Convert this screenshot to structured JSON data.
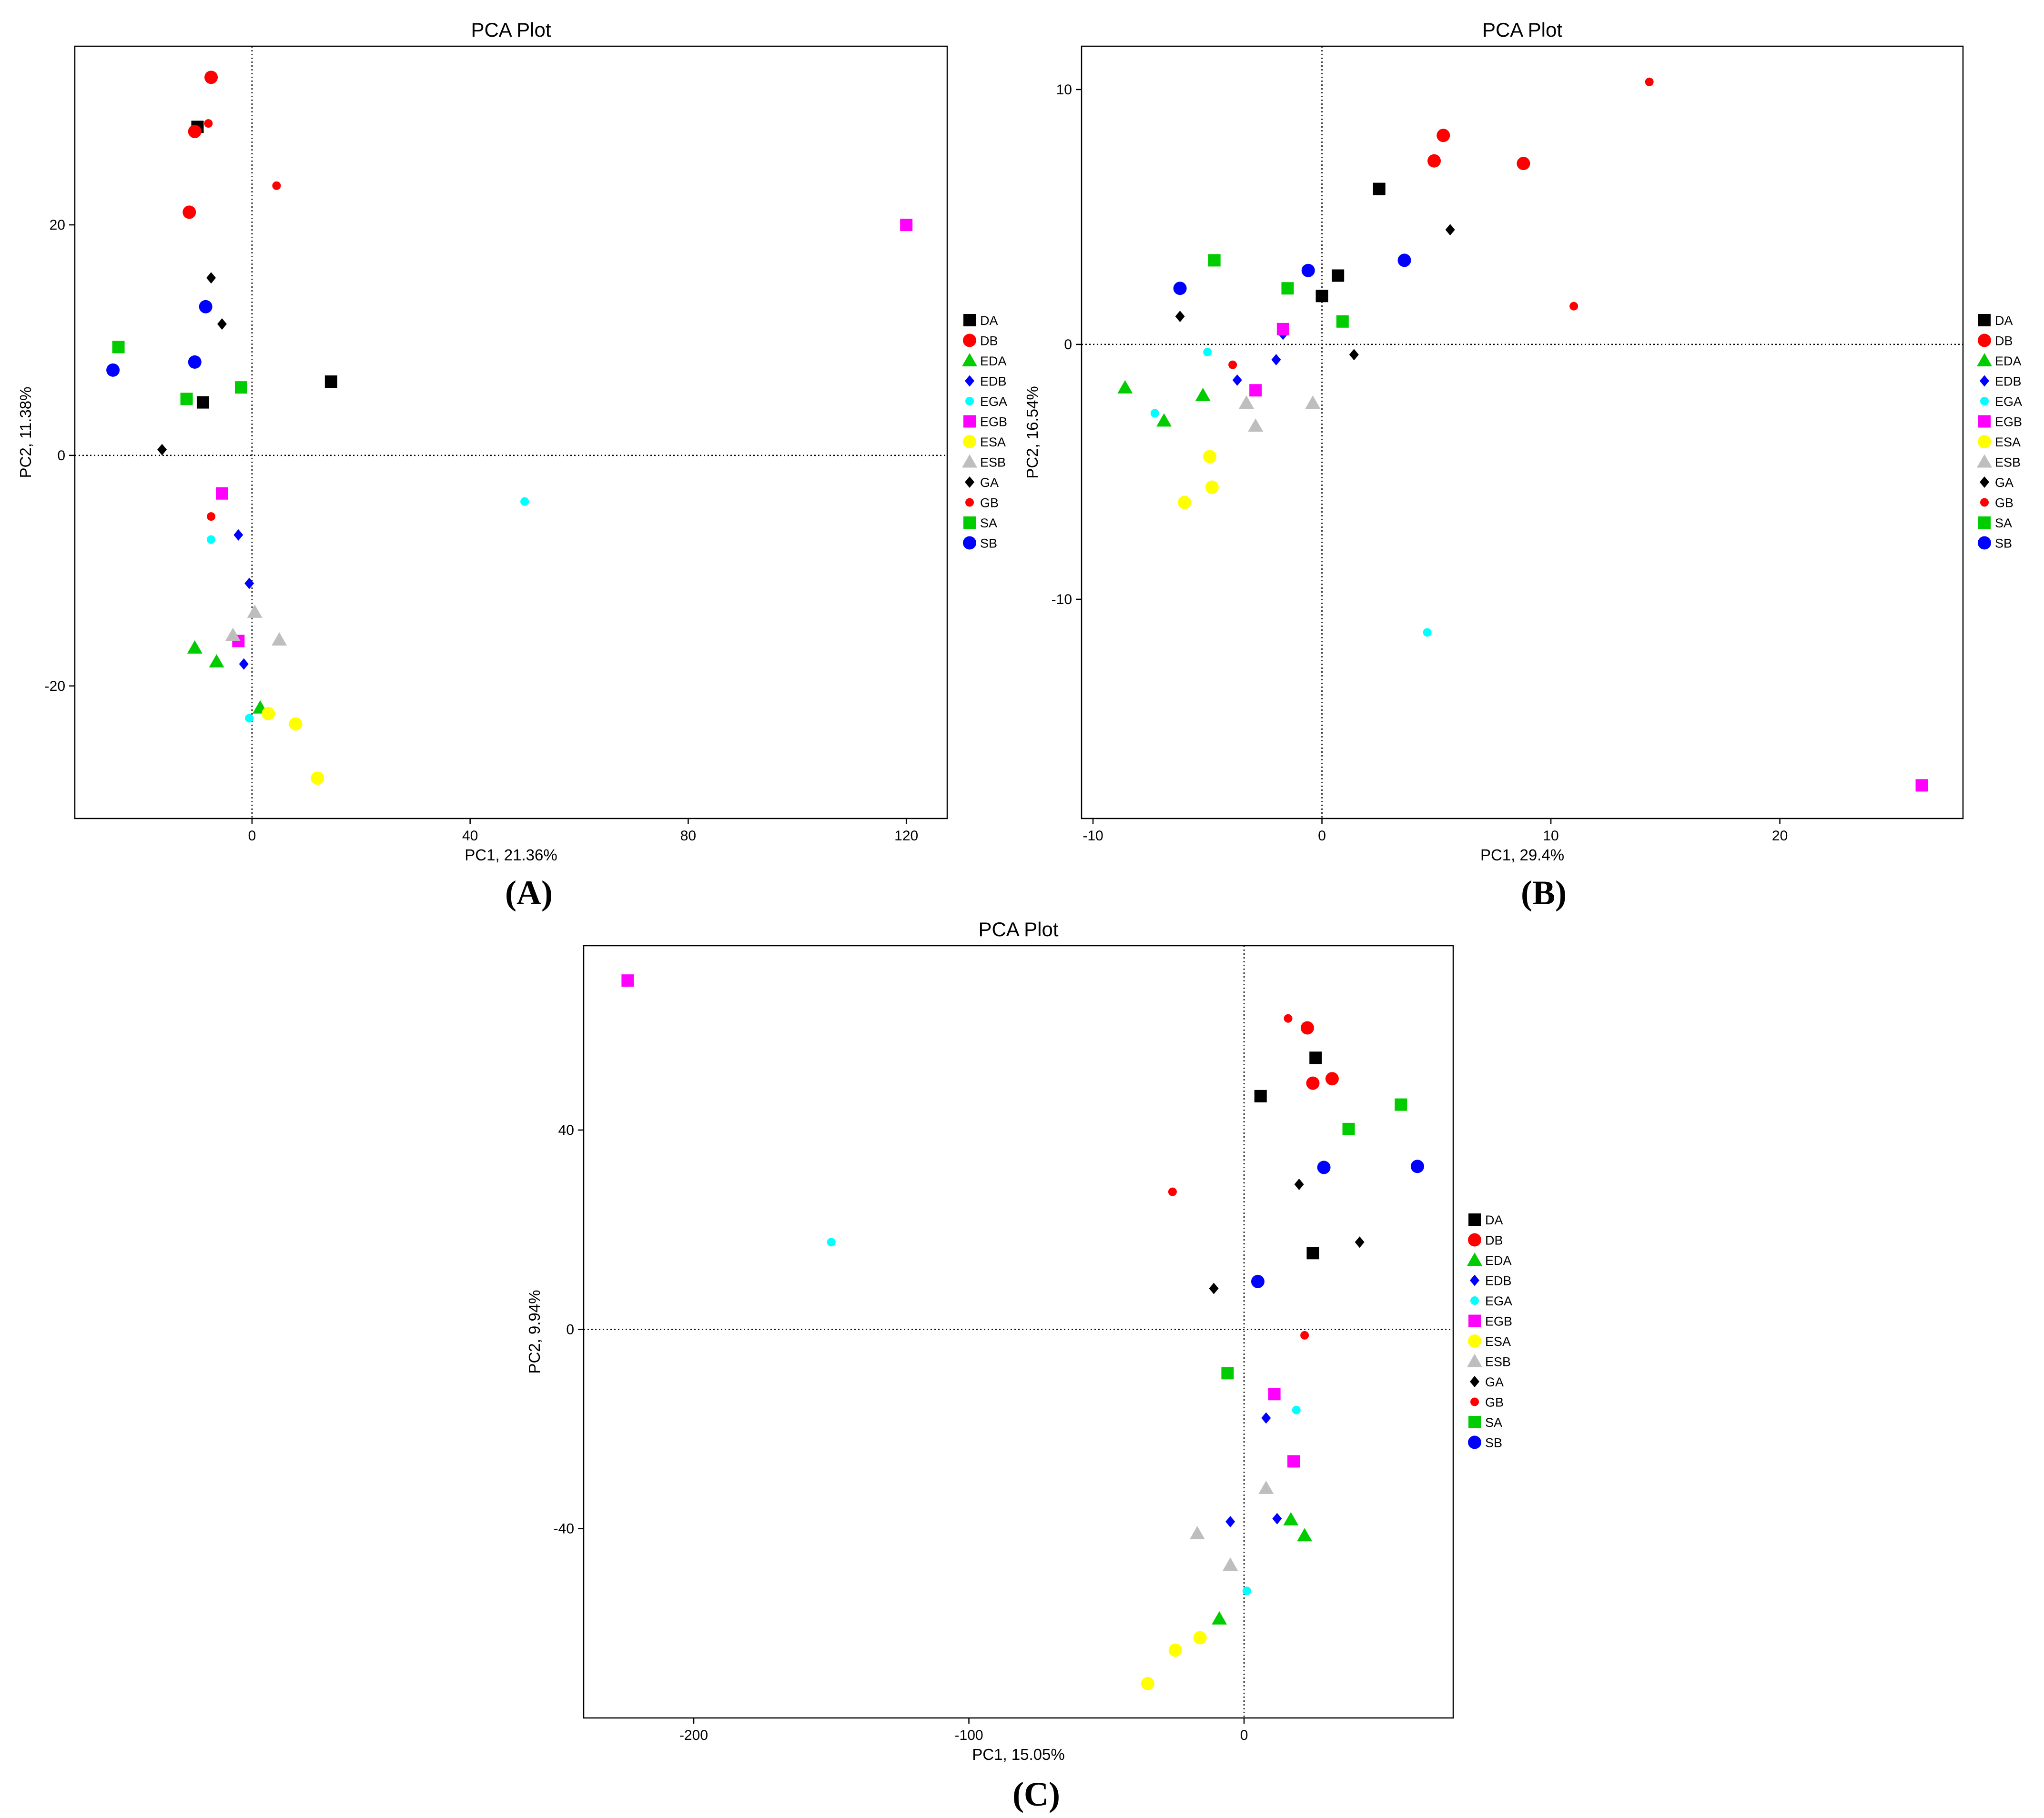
{
  "colors": {
    "DA": "#000000",
    "DB": "#ff0000",
    "EDA": "#00cc00",
    "EDB": "#0000ff",
    "EGA": "#00ffff",
    "EGB": "#ff00ff",
    "ESA": "#ffff00",
    "ESB": "#bebebe",
    "GA": "#000000",
    "GB": "#ff0000",
    "SA": "#00cc00",
    "SB": "#0000ff"
  },
  "shapes": {
    "DA": "square",
    "DB": "circle",
    "EDA": "triangle",
    "EDB": "diamond",
    "EGA": "small-circle",
    "EGB": "square",
    "ESA": "circle",
    "ESB": "triangle",
    "GA": "diamond",
    "GB": "small-circle",
    "SA": "square",
    "SB": "circle"
  },
  "chart_data": [
    {
      "type": "scatter",
      "panel_label": "(A)",
      "title": "PCA Plot",
      "xlabel": "PC1, 21.36%",
      "ylabel": "PC2, 11.38%",
      "xlim": [
        -32.5,
        127.5
      ],
      "ylim": [
        -31.5,
        35.5
      ],
      "xticks": [
        0,
        40,
        80,
        120
      ],
      "yticks": [
        -20,
        0,
        20
      ],
      "legend": [
        "DA",
        "DB",
        "EDA",
        "EDB",
        "EGA",
        "EGB",
        "ESA",
        "ESB",
        "GA",
        "GB",
        "SA",
        "SB"
      ],
      "legend_position": "right",
      "series": [
        {
          "name": "DA",
          "points": [
            [
              -10,
              28.5
            ],
            [
              -9,
              4.6
            ],
            [
              14.5,
              6.4
            ]
          ]
        },
        {
          "name": "DB",
          "points": [
            [
              -7.5,
              32.8
            ],
            [
              -10.5,
              28.1
            ],
            [
              -11.5,
              21.1
            ]
          ]
        },
        {
          "name": "EDA",
          "points": [
            [
              -10.5,
              -16.7
            ],
            [
              -6.5,
              -17.9
            ],
            [
              1.5,
              -21.9
            ]
          ]
        },
        {
          "name": "EDB",
          "points": [
            [
              -2.5,
              -6.9
            ],
            [
              -0.5,
              -11.1
            ],
            [
              -1.5,
              -18.1
            ]
          ]
        },
        {
          "name": "EGA",
          "points": [
            [
              50,
              -4
            ],
            [
              -7.5,
              -7.3
            ],
            [
              -0.5,
              -22.8
            ]
          ]
        },
        {
          "name": "EGB",
          "points": [
            [
              120,
              20
            ],
            [
              -5.5,
              -3.3
            ],
            [
              -2.5,
              -16.1
            ]
          ]
        },
        {
          "name": "ESA",
          "points": [
            [
              3,
              -22.4
            ],
            [
              8,
              -23.3
            ],
            [
              12,
              -28
            ]
          ]
        },
        {
          "name": "ESB",
          "points": [
            [
              0.5,
              -13.6
            ],
            [
              -3.5,
              -15.6
            ],
            [
              5,
              -16
            ]
          ]
        },
        {
          "name": "GA",
          "points": [
            [
              -7.5,
              15.4
            ],
            [
              -5.5,
              11.4
            ],
            [
              -16.5,
              0.5
            ]
          ]
        },
        {
          "name": "GB",
          "points": [
            [
              -8,
              28.8
            ],
            [
              4.5,
              23.4
            ],
            [
              -7.5,
              -5.3
            ]
          ]
        },
        {
          "name": "SA",
          "points": [
            [
              -24.5,
              9.4
            ],
            [
              -12,
              4.9
            ],
            [
              -2,
              5.9
            ]
          ]
        },
        {
          "name": "SB",
          "points": [
            [
              -8.5,
              12.9
            ],
            [
              -10.5,
              8.1
            ],
            [
              -25.5,
              7.4
            ]
          ]
        }
      ]
    },
    {
      "type": "scatter",
      "panel_label": "(B)",
      "title": "PCA Plot",
      "xlabel": "PC1, 29.4%",
      "ylabel": "PC2, 16.54%",
      "xlim": [
        -10.5,
        28
      ],
      "ylim": [
        -18.6,
        11.7
      ],
      "xticks": [
        -10,
        0,
        10,
        20
      ],
      "yticks": [
        -10,
        0,
        10
      ],
      "legend": [
        "DA",
        "DB",
        "EDA",
        "EDB",
        "EGA",
        "EGB",
        "ESA",
        "ESB",
        "GA",
        "GB",
        "SA",
        "SB"
      ],
      "legend_position": "right",
      "series": [
        {
          "name": "DA",
          "points": [
            [
              2.5,
              6.1
            ],
            [
              0.7,
              2.7
            ],
            [
              0,
              1.9
            ]
          ]
        },
        {
          "name": "DB",
          "points": [
            [
              5.3,
              8.2
            ],
            [
              4.9,
              7.2
            ],
            [
              8.8,
              7.1
            ]
          ]
        },
        {
          "name": "EDA",
          "points": [
            [
              -8.6,
              -1.7
            ],
            [
              -6.9,
              -3
            ],
            [
              -5.2,
              -2
            ]
          ]
        },
        {
          "name": "EDB",
          "points": [
            [
              -1.7,
              0.4
            ],
            [
              -2,
              -0.6
            ],
            [
              -3.7,
              -1.4
            ]
          ]
        },
        {
          "name": "EGA",
          "points": [
            [
              -5,
              -0.3
            ],
            [
              -7.3,
              -2.7
            ],
            [
              4.6,
              -11.3
            ]
          ]
        },
        {
          "name": "EGB",
          "points": [
            [
              -1.7,
              0.6
            ],
            [
              -2.9,
              -1.8
            ],
            [
              26.2,
              -17.3
            ]
          ]
        },
        {
          "name": "ESA",
          "points": [
            [
              -4.9,
              -4.4
            ],
            [
              -4.8,
              -5.6
            ],
            [
              -6,
              -6.2
            ]
          ]
        },
        {
          "name": "ESB",
          "points": [
            [
              -3.3,
              -2.3
            ],
            [
              -2.9,
              -3.2
            ],
            [
              -0.4,
              -2.3
            ]
          ]
        },
        {
          "name": "GA",
          "points": [
            [
              5.6,
              4.5
            ],
            [
              -6.2,
              1.1
            ],
            [
              1.4,
              -0.4
            ]
          ]
        },
        {
          "name": "GB",
          "points": [
            [
              14.3,
              10.3
            ],
            [
              11,
              1.5
            ],
            [
              -3.9,
              -0.8
            ]
          ]
        },
        {
          "name": "SA",
          "points": [
            [
              -4.7,
              3.3
            ],
            [
              -1.5,
              2.2
            ],
            [
              0.9,
              0.9
            ]
          ]
        },
        {
          "name": "SB",
          "points": [
            [
              3.6,
              3.3
            ],
            [
              -0.6,
              2.9
            ],
            [
              -6.2,
              2.2
            ]
          ]
        }
      ]
    },
    {
      "type": "scatter",
      "panel_label": "(C)",
      "title": "PCA Plot",
      "xlabel": "PC1, 15.05%",
      "ylabel": "PC2, 9.94%",
      "xlim": [
        -240,
        76
      ],
      "ylim": [
        -78,
        77
      ],
      "xticks": [
        -200,
        -100,
        0
      ],
      "yticks": [
        -40,
        0,
        40
      ],
      "legend": [
        "DA",
        "DB",
        "EDA",
        "EDB",
        "EGA",
        "EGB",
        "ESA",
        "ESB",
        "GA",
        "GB",
        "SA",
        "SB"
      ],
      "legend_position": "right",
      "series": [
        {
          "name": "DA",
          "points": [
            [
              26,
              54.5
            ],
            [
              6,
              46.8
            ],
            [
              25,
              15.3
            ]
          ]
        },
        {
          "name": "DB",
          "points": [
            [
              23,
              60.5
            ],
            [
              32,
              50.3
            ],
            [
              25,
              49.4
            ]
          ]
        },
        {
          "name": "EDA",
          "points": [
            [
              17,
              -38.2
            ],
            [
              22,
              -41.4
            ],
            [
              -9,
              -58.1
            ]
          ]
        },
        {
          "name": "EDB",
          "points": [
            [
              12,
              -38
            ],
            [
              -5,
              -38.6
            ],
            [
              8,
              -17.8
            ]
          ]
        },
        {
          "name": "EGA",
          "points": [
            [
              -150,
              17.5
            ],
            [
              19,
              -16.2
            ],
            [
              1,
              -52.5
            ]
          ]
        },
        {
          "name": "EGB",
          "points": [
            [
              -224,
              70
            ],
            [
              11,
              -13
            ],
            [
              18,
              -26.5
            ]
          ]
        },
        {
          "name": "ESA",
          "points": [
            [
              -16,
              -61.9
            ],
            [
              -25,
              -64.4
            ],
            [
              -35,
              -71.1
            ]
          ]
        },
        {
          "name": "ESB",
          "points": [
            [
              8,
              -31.9
            ],
            [
              -17,
              -41
            ],
            [
              -5,
              -47.3
            ]
          ]
        },
        {
          "name": "GA",
          "points": [
            [
              20,
              29.1
            ],
            [
              42,
              17.5
            ],
            [
              -11,
              8.2
            ]
          ]
        },
        {
          "name": "GB",
          "points": [
            [
              16,
              62.4
            ],
            [
              -26,
              27.6
            ],
            [
              22,
              -1.2
            ]
          ]
        },
        {
          "name": "SA",
          "points": [
            [
              57,
              45.1
            ],
            [
              38,
              40.2
            ],
            [
              -6,
              -8.8
            ]
          ]
        },
        {
          "name": "SB",
          "points": [
            [
              29,
              32.5
            ],
            [
              63,
              32.7
            ],
            [
              5,
              9.6
            ]
          ]
        }
      ]
    }
  ]
}
